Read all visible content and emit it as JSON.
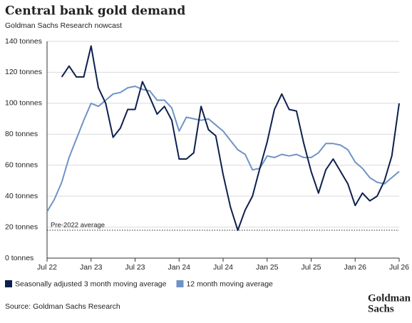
{
  "chart_data": {
    "type": "line",
    "title": "Central bank gold demand",
    "subtitle": "Goldman Sachs Research nowcast",
    "source": "Source: Goldman Sachs Research",
    "logo": [
      "Goldman",
      "Sachs"
    ],
    "categories": [
      "Jul 22",
      null,
      null,
      null,
      null,
      null,
      "Jan 23",
      null,
      null,
      null,
      null,
      null,
      "Jul 23",
      null,
      null,
      null,
      null,
      null,
      "Jan 24",
      null,
      null,
      null,
      null,
      null,
      "Jul 24",
      null,
      null,
      null,
      null,
      null,
      "Jan 25",
      null,
      null,
      null,
      null,
      null,
      "Jul 25",
      null,
      null,
      null,
      null,
      null,
      "Jan 26",
      null,
      null,
      null,
      null,
      null,
      "Jul 26"
    ],
    "series": [
      {
        "name": "Seasonally adjusted 3 month moving average",
        "color": "#0d1f4d",
        "values": [
          null,
          null,
          117,
          124,
          117,
          117,
          137,
          110,
          100,
          78,
          84,
          96,
          96,
          114,
          104,
          93,
          98,
          89,
          64,
          64,
          68,
          98,
          83,
          79,
          54,
          33,
          18,
          31,
          40,
          58,
          75,
          96,
          106,
          96,
          95,
          74,
          56,
          42,
          57,
          64,
          56,
          48,
          34,
          42,
          37,
          40,
          50,
          66,
          100
        ]
      },
      {
        "name": "12 month moving average",
        "color": "#6f93c6",
        "values": [
          30,
          38,
          49,
          65,
          77,
          89,
          100,
          98,
          102,
          106,
          107,
          110,
          111,
          109,
          108,
          102,
          102,
          97,
          82,
          91,
          90,
          89,
          90,
          86,
          82,
          76,
          70,
          67,
          57,
          58,
          66,
          65,
          67,
          66,
          67,
          65,
          65,
          68,
          74,
          74,
          73,
          70,
          62,
          58,
          52,
          49,
          48,
          52,
          56
        ]
      }
    ],
    "reference_line": {
      "value": 18,
      "label": "Pre-2022 average"
    },
    "ylim": [
      0,
      140
    ],
    "yticks": [
      {
        "value": 0,
        "label": "0 tonnes"
      },
      {
        "value": 20,
        "label": "20 tonnes"
      },
      {
        "value": 40,
        "label": "40 tonnes"
      },
      {
        "value": 60,
        "label": "60 tonnes"
      },
      {
        "value": 80,
        "label": "80 tonnes"
      },
      {
        "value": 100,
        "label": "100 tonnes"
      },
      {
        "value": 120,
        "label": "120 tonnes"
      },
      {
        "value": 140,
        "label": "140 tonnes"
      }
    ],
    "grid": true
  }
}
